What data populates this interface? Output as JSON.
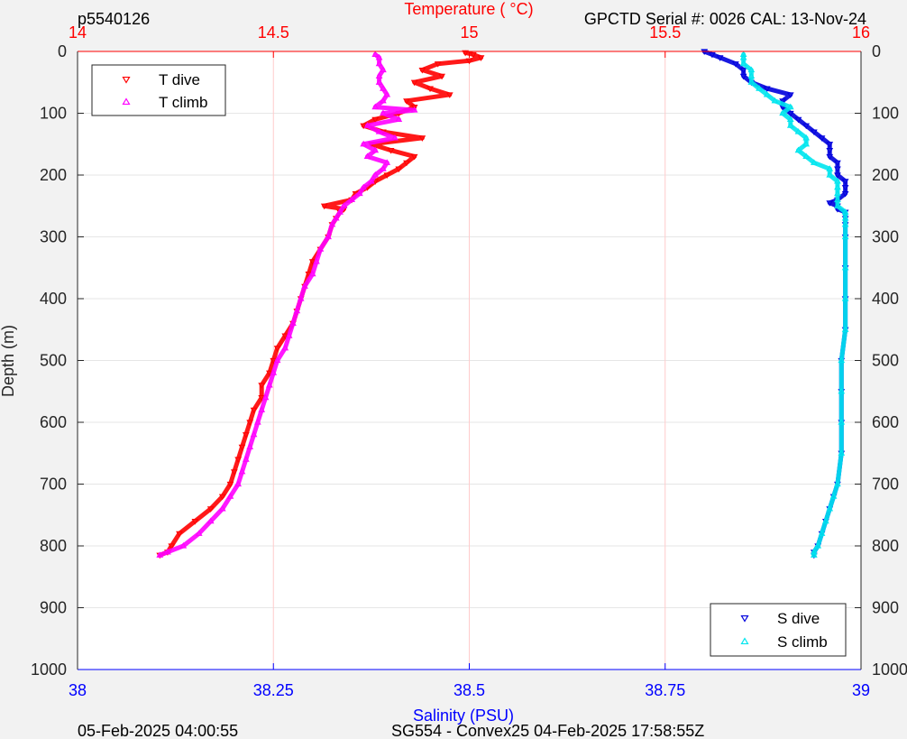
{
  "header": {
    "top_left": "p5540126",
    "top_right": "GPCTD Serial #: 0026 CAL: 13-Nov-24",
    "bottom_left": "05-Feb-2025 04:00:55",
    "bottom_center": "SG554 - Convex25 04-Feb-2025 17:58:55Z"
  },
  "colors": {
    "temperature_axis": "#ff0000",
    "salinity_axis": "#0000ff",
    "t_dive": "#ff0000",
    "t_climb": "#ff00ff",
    "s_dive": "#0000dd",
    "s_climb": "#00e5ee",
    "grid_temperature": "#ffcccc",
    "grid_depth": "#e6e6e6"
  },
  "chart_data": {
    "type": "scatter",
    "y_axis": {
      "label": "Depth (m)",
      "lim": [
        0,
        1000
      ],
      "ticks": [
        "0",
        "100",
        "200",
        "300",
        "400",
        "500",
        "600",
        "700",
        "800",
        "900",
        "1000"
      ],
      "reversed": true
    },
    "temperature_axis": {
      "label": "Temperature (   °C)",
      "position": "top",
      "lim": [
        14,
        16
      ],
      "ticks": [
        "14",
        "14.5",
        "15",
        "15.5",
        "16"
      ]
    },
    "salinity_axis": {
      "label": "Salinity (PSU)",
      "position": "bottom",
      "lim": [
        38,
        39
      ],
      "ticks": [
        "38",
        "38.25",
        "38.5",
        "38.75",
        "39"
      ]
    },
    "grid": true,
    "legend_temperature": {
      "position": "top-left",
      "items": [
        "T dive",
        "T climb"
      ]
    },
    "legend_salinity": {
      "position": "bottom-right",
      "items": [
        "S dive",
        "S climb"
      ]
    },
    "series": [
      {
        "name": "T dive",
        "axis": "temperature",
        "marker": "triangle-down",
        "depth": [
          2,
          5,
          10,
          15,
          20,
          30,
          40,
          50,
          60,
          70,
          80,
          90,
          100,
          110,
          120,
          130,
          140,
          150,
          160,
          170,
          180,
          190,
          200,
          210,
          220,
          230,
          240,
          250,
          255,
          260,
          270,
          280,
          300,
          320,
          340,
          360,
          380,
          400,
          420,
          440,
          460,
          480,
          500,
          520,
          540,
          560,
          580,
          600,
          620,
          640,
          660,
          680,
          700,
          720,
          740,
          760,
          780,
          800,
          810,
          815
        ],
        "values": [
          14.99,
          15.01,
          15.03,
          15.0,
          14.92,
          14.88,
          14.93,
          14.86,
          14.9,
          14.95,
          14.84,
          14.86,
          14.82,
          14.76,
          14.73,
          14.78,
          14.88,
          14.75,
          14.8,
          14.86,
          14.84,
          14.82,
          14.79,
          14.76,
          14.74,
          14.71,
          14.7,
          14.63,
          14.68,
          14.67,
          14.66,
          14.65,
          14.64,
          14.62,
          14.6,
          14.59,
          14.58,
          14.57,
          14.56,
          14.55,
          14.53,
          14.51,
          14.5,
          14.49,
          14.47,
          14.47,
          14.45,
          14.44,
          14.43,
          14.42,
          14.41,
          14.4,
          14.39,
          14.37,
          14.34,
          14.3,
          14.26,
          14.24,
          14.23,
          14.21
        ]
      },
      {
        "name": "T climb",
        "axis": "temperature",
        "marker": "triangle-up",
        "depth": [
          5,
          10,
          20,
          30,
          40,
          50,
          60,
          70,
          80,
          90,
          95,
          100,
          110,
          120,
          130,
          140,
          150,
          160,
          170,
          180,
          190,
          200,
          210,
          220,
          230,
          240,
          250,
          260,
          270,
          280,
          300,
          320,
          340,
          360,
          380,
          400,
          420,
          440,
          460,
          480,
          500,
          520,
          540,
          560,
          580,
          600,
          620,
          640,
          660,
          680,
          700,
          720,
          740,
          760,
          780,
          800,
          810,
          815
        ],
        "values": [
          14.76,
          14.77,
          14.77,
          14.78,
          14.77,
          14.77,
          14.78,
          14.79,
          14.78,
          14.76,
          14.86,
          14.78,
          14.82,
          14.74,
          14.77,
          14.81,
          14.73,
          14.76,
          14.74,
          14.79,
          14.78,
          14.76,
          14.75,
          14.73,
          14.72,
          14.7,
          14.68,
          14.67,
          14.66,
          14.65,
          14.64,
          14.62,
          14.61,
          14.6,
          14.58,
          14.57,
          14.56,
          14.55,
          14.54,
          14.53,
          14.51,
          14.5,
          14.49,
          14.48,
          14.47,
          14.46,
          14.45,
          14.44,
          14.43,
          14.42,
          14.41,
          14.39,
          14.37,
          14.34,
          14.31,
          14.27,
          14.23,
          14.21
        ]
      },
      {
        "name": "S dive",
        "axis": "salinity",
        "marker": "triangle-down",
        "depth": [
          0,
          5,
          10,
          20,
          30,
          40,
          50,
          60,
          70,
          80,
          90,
          100,
          110,
          120,
          130,
          140,
          150,
          160,
          170,
          180,
          190,
          200,
          210,
          220,
          230,
          240,
          245,
          250,
          255,
          260,
          270,
          280,
          300,
          350,
          400,
          450,
          500,
          550,
          600,
          650,
          700,
          720,
          740,
          760,
          780,
          800,
          810,
          815
        ],
        "values": [
          38.8,
          38.81,
          38.82,
          38.84,
          38.85,
          38.85,
          38.86,
          38.88,
          38.91,
          38.9,
          38.9,
          38.91,
          38.92,
          38.93,
          38.94,
          38.95,
          38.96,
          38.96,
          38.96,
          38.97,
          38.97,
          38.97,
          38.98,
          38.98,
          38.98,
          38.97,
          38.96,
          38.97,
          38.97,
          38.98,
          38.98,
          38.98,
          38.98,
          38.98,
          38.98,
          38.98,
          38.975,
          38.975,
          38.975,
          38.975,
          38.97,
          38.965,
          38.96,
          38.955,
          38.95,
          38.945,
          38.94,
          38.94
        ]
      },
      {
        "name": "S climb",
        "axis": "salinity",
        "marker": "triangle-up",
        "depth": [
          5,
          10,
          20,
          30,
          40,
          50,
          60,
          70,
          80,
          90,
          100,
          110,
          120,
          130,
          140,
          150,
          160,
          170,
          180,
          190,
          200,
          210,
          220,
          230,
          240,
          250,
          260,
          270,
          280,
          300,
          350,
          400,
          450,
          500,
          550,
          600,
          650,
          700,
          720,
          740,
          760,
          780,
          800,
          810,
          815
        ],
        "values": [
          38.85,
          38.85,
          38.85,
          38.86,
          38.86,
          38.86,
          38.87,
          38.88,
          38.89,
          38.91,
          38.9,
          38.91,
          38.91,
          38.92,
          38.93,
          38.93,
          38.92,
          38.93,
          38.94,
          38.96,
          38.96,
          38.97,
          38.97,
          38.97,
          38.97,
          38.97,
          38.98,
          38.98,
          38.98,
          38.98,
          38.98,
          38.98,
          38.98,
          38.975,
          38.975,
          38.975,
          38.975,
          38.97,
          38.965,
          38.96,
          38.955,
          38.95,
          38.945,
          38.94,
          38.94
        ]
      }
    ]
  }
}
